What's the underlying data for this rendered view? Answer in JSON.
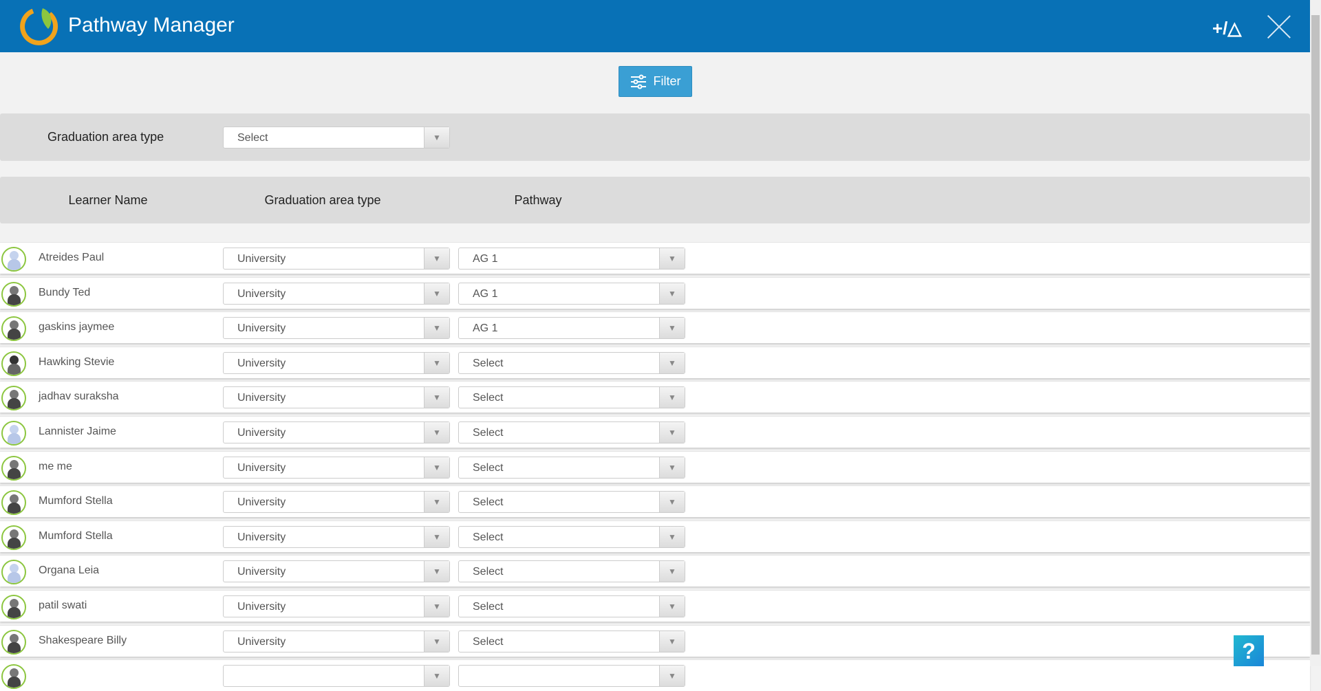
{
  "header": {
    "title": "Pathway Manager",
    "add_icon_label": "+/△"
  },
  "toolbar": {
    "filter_label": "Filter"
  },
  "filter": {
    "label": "Graduation area type",
    "value": "Select"
  },
  "columns": {
    "learner": "Learner Name",
    "grad_area": "Graduation area type",
    "pathway": "Pathway"
  },
  "rows": [
    {
      "name": "Atreides Paul",
      "avatar": "light",
      "grad": "University",
      "pathway": "AG 1"
    },
    {
      "name": "Bundy Ted",
      "avatar": "dark",
      "grad": "University",
      "pathway": "AG 1"
    },
    {
      "name": "gaskins jaymee",
      "avatar": "dark",
      "grad": "University",
      "pathway": "AG 1"
    },
    {
      "name": "Hawking Stevie",
      "avatar": "photo",
      "grad": "University",
      "pathway": "Select"
    },
    {
      "name": "jadhav suraksha",
      "avatar": "dark",
      "grad": "University",
      "pathway": "Select"
    },
    {
      "name": "Lannister Jaime",
      "avatar": "light",
      "grad": "University",
      "pathway": "Select"
    },
    {
      "name": "me me",
      "avatar": "dark",
      "grad": "University",
      "pathway": "Select"
    },
    {
      "name": "Mumford Stella",
      "avatar": "dark",
      "grad": "University",
      "pathway": "Select"
    },
    {
      "name": "Mumford Stella",
      "avatar": "dark",
      "grad": "University",
      "pathway": "Select"
    },
    {
      "name": "Organa Leia",
      "avatar": "light",
      "grad": "University",
      "pathway": "Select"
    },
    {
      "name": "patil swati",
      "avatar": "dark",
      "grad": "University",
      "pathway": "Select"
    },
    {
      "name": "Shakespeare Billy",
      "avatar": "dark",
      "grad": "University",
      "pathway": "Select"
    },
    {
      "name": "",
      "avatar": "dark",
      "grad": "",
      "pathway": ""
    }
  ],
  "help": {
    "label": "?"
  },
  "colors": {
    "header": "#0871b6",
    "accent": "#3a9fd4",
    "avatar_ring": "#8cc63f"
  }
}
